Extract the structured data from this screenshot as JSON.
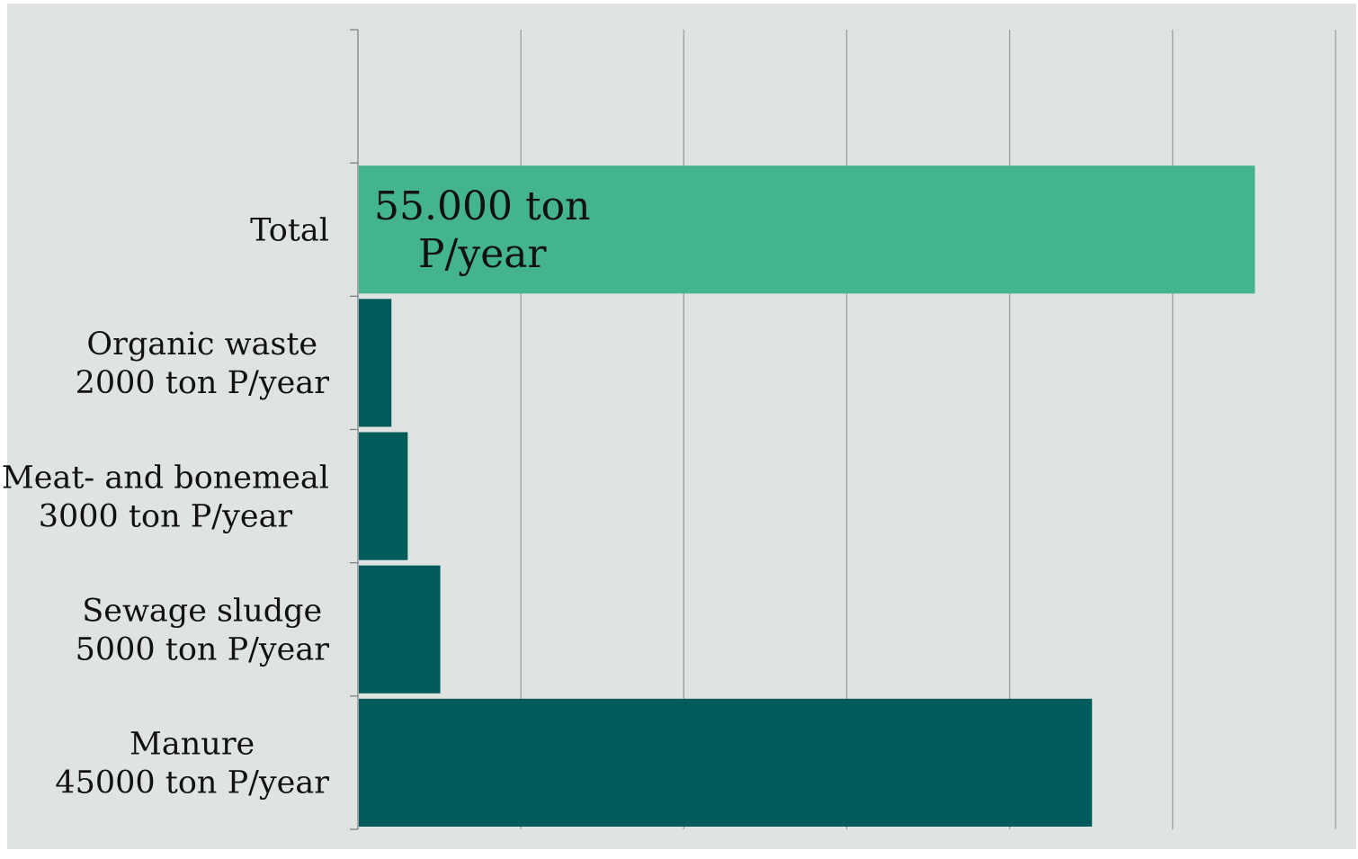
{
  "chart_data": {
    "type": "bar",
    "orientation": "horizontal",
    "categories": [
      {
        "key": "total",
        "lines": [
          "Total"
        ]
      },
      {
        "key": "organic-waste",
        "lines": [
          "Organic waste",
          "2000 ton P/year"
        ]
      },
      {
        "key": "meat-and-bonemeal",
        "lines": [
          "Meat- and bonemeal",
          "3000 ton P/year"
        ]
      },
      {
        "key": "sewage-sludge",
        "lines": [
          "Sewage  sludge",
          "5000 ton P/year"
        ]
      },
      {
        "key": "manure",
        "lines": [
          "Manure",
          "45000 ton P/year"
        ]
      }
    ],
    "values": [
      55000,
      2000,
      3000,
      5000,
      45000
    ],
    "xlim": [
      0,
      60000
    ],
    "grid": true,
    "title": "",
    "xlabel": "",
    "ylabel": "",
    "annotations": [
      {
        "category": "total",
        "lines": [
          "55.000 ton",
          "P/year"
        ]
      }
    ],
    "colors": {
      "background": "#dfe3e2",
      "total_bar": "#44b38f",
      "component_bars": "#015b5b",
      "gridline": "#9aa0a0",
      "text": "#111111"
    }
  }
}
